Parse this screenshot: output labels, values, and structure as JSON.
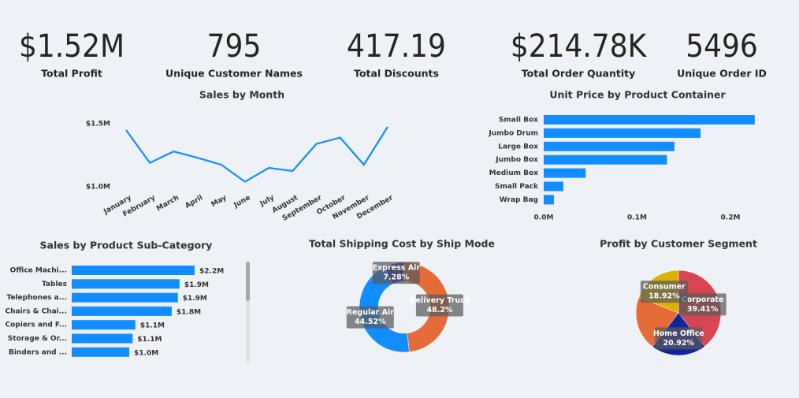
{
  "kpis": [
    {
      "value": "$1.52M",
      "label": "Total Profit"
    },
    {
      "value": "795",
      "label": "Unique Customer Names"
    },
    {
      "value": "417.19",
      "label": "Total Discounts"
    },
    {
      "value": "$214.78K",
      "label": "Total Order Quantity"
    },
    {
      "value": "5496",
      "label": "Unique Order ID"
    }
  ],
  "chart_data": [
    {
      "type": "line",
      "title": "Sales by Month",
      "categories": [
        "January",
        "February",
        "March",
        "April",
        "May",
        "June",
        "July",
        "August",
        "September",
        "October",
        "November",
        "December"
      ],
      "values": [
        1450000,
        1190000,
        1280000,
        1230000,
        1175000,
        1040000,
        1150000,
        1125000,
        1340000,
        1390000,
        1175000,
        1475000
      ],
      "color": "#118dff",
      "ylim": [
        1000000,
        1500000
      ],
      "yticks": [
        {
          "value": 1000000,
          "label": "$1.0M"
        },
        {
          "value": 1500000,
          "label": "$1.5M"
        }
      ]
    },
    {
      "type": "hbar",
      "title": "Unit Price by Product Container",
      "categories": [
        "Small Box",
        "Jumbo Drum",
        "Large Box",
        "Jumbo Box",
        "Medium Box",
        "Small Pack",
        "Wrap Bag"
      ],
      "values": [
        226000,
        168000,
        140000,
        132000,
        45000,
        21000,
        11000
      ],
      "color": "#118dff",
      "xlim": [
        0,
        230000
      ],
      "xticks": [
        {
          "value": 0,
          "label": "0.0M"
        },
        {
          "value": 100000,
          "label": "0.1M"
        },
        {
          "value": 200000,
          "label": "0.2M"
        }
      ]
    },
    {
      "type": "hbar-labeled",
      "title": "Sales by Product Sub-Category",
      "categories": [
        "Office Machi...",
        "Tables",
        "Telephones a...",
        "Chairs & Chai...",
        "Copiers and F...",
        "Storage & Or...",
        "Binders and ..."
      ],
      "values": [
        2200000,
        1930000,
        1900000,
        1790000,
        1140000,
        1090000,
        1030000
      ],
      "value_labels": [
        "$2.2M",
        "$1.9M",
        "$1.9M",
        "$1.8M",
        "$1.1M",
        "$1.1M",
        "$1.0M"
      ],
      "color": "#118dff"
    },
    {
      "type": "donut",
      "title": "Total Shipping Cost by Ship Mode",
      "categories": [
        "Delivery Truck",
        "Regular Air",
        "Express Air"
      ],
      "values": [
        48.2,
        44.52,
        7.28
      ],
      "value_labels": [
        "48.2%",
        "44.52%",
        "7.28%"
      ],
      "colors": [
        "#e66c37",
        "#118dff",
        "#12239e"
      ]
    },
    {
      "type": "pie",
      "title": "Profit by Customer Segment",
      "categories": [
        "Corporate",
        "Home Office",
        null,
        "Consumer"
      ],
      "values": [
        39.41,
        20.92,
        20.75,
        18.92
      ],
      "value_labels": [
        "39.41%",
        "20.92%",
        null,
        "18.92%"
      ],
      "colors": [
        "#d64550",
        "#12239e",
        "#e66c37",
        "#d9b300"
      ]
    }
  ]
}
